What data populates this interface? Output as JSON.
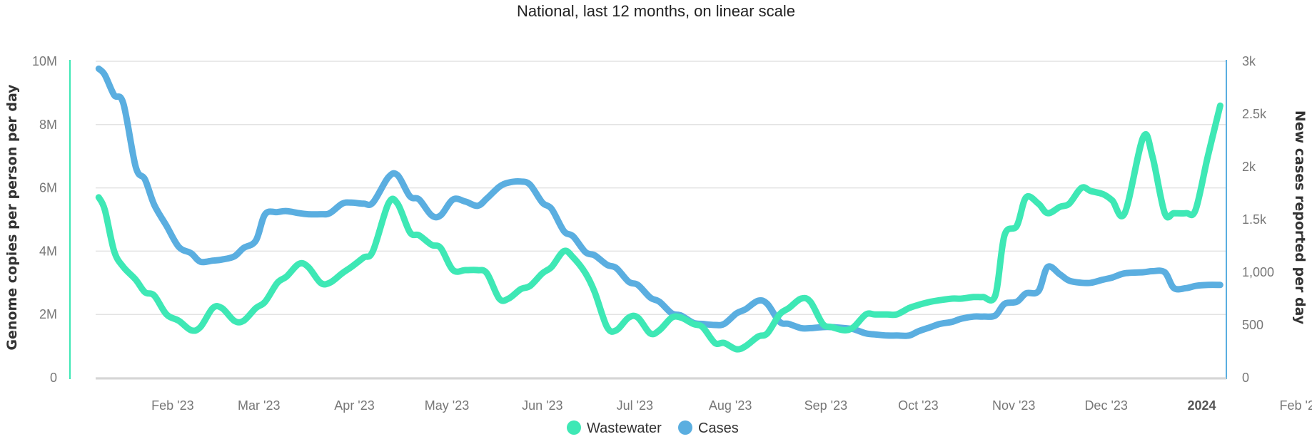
{
  "chart_data": {
    "type": "line",
    "title": "National, last 12 months, on linear scale",
    "y_left": {
      "label": "Genome copies per person per day",
      "ticks": [
        "0",
        "2M",
        "4M",
        "6M",
        "8M",
        "10M"
      ],
      "range": [
        0,
        10000000
      ],
      "color": "#3ee8b5"
    },
    "y_right": {
      "label": "New cases reported per day",
      "ticks": [
        "0",
        "500",
        "1,000",
        "1.5k",
        "2k",
        "2.5k",
        "3k"
      ],
      "range": [
        0,
        3000
      ],
      "color": "#5aaee0"
    },
    "x_ticks": [
      {
        "label": "Feb '23",
        "date": "2023-02-01"
      },
      {
        "label": "Mar '23",
        "date": "2023-03-01"
      },
      {
        "label": "Apr '23",
        "date": "2023-04-01"
      },
      {
        "label": "May '23",
        "date": "2023-05-01"
      },
      {
        "label": "Jun '23",
        "date": "2023-06-01"
      },
      {
        "label": "Jul '23",
        "date": "2023-07-01"
      },
      {
        "label": "Aug '23",
        "date": "2023-08-01"
      },
      {
        "label": "Sep '23",
        "date": "2023-09-01"
      },
      {
        "label": "Oct '23",
        "date": "2023-10-01"
      },
      {
        "label": "Nov '23",
        "date": "2023-11-01"
      },
      {
        "label": "Dec '23",
        "date": "2023-12-01"
      },
      {
        "label": "2024",
        "date": "2024-01-01",
        "bold": true
      },
      {
        "label": "Feb '2",
        "date": "2024-02-01"
      }
    ],
    "grid": true,
    "legend_position": "bottom",
    "series": [
      {
        "name": "Wastewater",
        "axis": "left",
        "color": "#3ee8b5",
        "points": [
          [
            "2023-01-08",
            5700000
          ],
          [
            "2023-01-10",
            5300000
          ],
          [
            "2023-01-13",
            4000000
          ],
          [
            "2023-01-16",
            3500000
          ],
          [
            "2023-01-20",
            3100000
          ],
          [
            "2023-01-23",
            2700000
          ],
          [
            "2023-01-26",
            2600000
          ],
          [
            "2023-01-30",
            2000000
          ],
          [
            "2023-02-03",
            1800000
          ],
          [
            "2023-02-07",
            1500000
          ],
          [
            "2023-02-10",
            1600000
          ],
          [
            "2023-02-14",
            2200000
          ],
          [
            "2023-02-17",
            2200000
          ],
          [
            "2023-02-21",
            1800000
          ],
          [
            "2023-02-24",
            1800000
          ],
          [
            "2023-02-28",
            2200000
          ],
          [
            "2023-03-03",
            2400000
          ],
          [
            "2023-03-07",
            3000000
          ],
          [
            "2023-03-10",
            3200000
          ],
          [
            "2023-03-14",
            3600000
          ],
          [
            "2023-03-17",
            3500000
          ],
          [
            "2023-03-21",
            3000000
          ],
          [
            "2023-03-24",
            3000000
          ],
          [
            "2023-03-28",
            3300000
          ],
          [
            "2023-03-31",
            3500000
          ],
          [
            "2023-04-04",
            3800000
          ],
          [
            "2023-04-07",
            4000000
          ],
          [
            "2023-04-12",
            5500000
          ],
          [
            "2023-04-15",
            5500000
          ],
          [
            "2023-04-19",
            4600000
          ],
          [
            "2023-04-22",
            4500000
          ],
          [
            "2023-04-26",
            4200000
          ],
          [
            "2023-04-29",
            4100000
          ],
          [
            "2023-05-03",
            3400000
          ],
          [
            "2023-05-07",
            3400000
          ],
          [
            "2023-05-11",
            3400000
          ],
          [
            "2023-05-14",
            3300000
          ],
          [
            "2023-05-18",
            2500000
          ],
          [
            "2023-05-21",
            2500000
          ],
          [
            "2023-05-25",
            2800000
          ],
          [
            "2023-05-28",
            2900000
          ],
          [
            "2023-06-01",
            3300000
          ],
          [
            "2023-06-04",
            3500000
          ],
          [
            "2023-06-08",
            4000000
          ],
          [
            "2023-06-11",
            3800000
          ],
          [
            "2023-06-15",
            3300000
          ],
          [
            "2023-06-18",
            2700000
          ],
          [
            "2023-06-22",
            1600000
          ],
          [
            "2023-06-25",
            1500000
          ],
          [
            "2023-06-29",
            1900000
          ],
          [
            "2023-07-02",
            1900000
          ],
          [
            "2023-07-06",
            1400000
          ],
          [
            "2023-07-09",
            1500000
          ],
          [
            "2023-07-13",
            1900000
          ],
          [
            "2023-07-16",
            1900000
          ],
          [
            "2023-07-20",
            1700000
          ],
          [
            "2023-07-23",
            1600000
          ],
          [
            "2023-07-27",
            1100000
          ],
          [
            "2023-07-30",
            1100000
          ],
          [
            "2023-08-03",
            900000
          ],
          [
            "2023-08-06",
            1000000
          ],
          [
            "2023-08-10",
            1300000
          ],
          [
            "2023-08-13",
            1400000
          ],
          [
            "2023-08-17",
            2000000
          ],
          [
            "2023-08-20",
            2200000
          ],
          [
            "2023-08-24",
            2500000
          ],
          [
            "2023-08-27",
            2400000
          ],
          [
            "2023-08-31",
            1700000
          ],
          [
            "2023-09-03",
            1600000
          ],
          [
            "2023-09-07",
            1500000
          ],
          [
            "2023-09-10",
            1600000
          ],
          [
            "2023-09-14",
            2000000
          ],
          [
            "2023-09-17",
            2000000
          ],
          [
            "2023-09-21",
            2000000
          ],
          [
            "2023-09-24",
            2000000
          ],
          [
            "2023-09-28",
            2200000
          ],
          [
            "2023-10-01",
            2300000
          ],
          [
            "2023-10-05",
            2400000
          ],
          [
            "2023-10-08",
            2450000
          ],
          [
            "2023-10-12",
            2500000
          ],
          [
            "2023-10-15",
            2500000
          ],
          [
            "2023-10-19",
            2550000
          ],
          [
            "2023-10-22",
            2550000
          ],
          [
            "2023-10-26",
            2600000
          ],
          [
            "2023-10-29",
            4500000
          ],
          [
            "2023-11-02",
            4800000
          ],
          [
            "2023-11-05",
            5700000
          ],
          [
            "2023-11-09",
            5500000
          ],
          [
            "2023-11-12",
            5200000
          ],
          [
            "2023-11-16",
            5400000
          ],
          [
            "2023-11-19",
            5500000
          ],
          [
            "2023-11-23",
            6000000
          ],
          [
            "2023-11-26",
            5900000
          ],
          [
            "2023-11-30",
            5800000
          ],
          [
            "2023-12-03",
            5600000
          ],
          [
            "2023-12-07",
            5200000
          ],
          [
            "2023-12-13",
            7600000
          ],
          [
            "2023-12-16",
            7000000
          ],
          [
            "2023-12-20",
            5200000
          ],
          [
            "2023-12-23",
            5200000
          ],
          [
            "2023-12-27",
            5200000
          ],
          [
            "2023-12-30",
            5300000
          ],
          [
            "2024-01-03",
            7000000
          ],
          [
            "2024-01-07",
            8600000
          ]
        ]
      },
      {
        "name": "Cases",
        "axis": "right",
        "color": "#5aaee0",
        "points": [
          [
            "2023-01-08",
            2930
          ],
          [
            "2023-01-10",
            2870
          ],
          [
            "2023-01-13",
            2680
          ],
          [
            "2023-01-16",
            2600
          ],
          [
            "2023-01-20",
            2000
          ],
          [
            "2023-01-23",
            1880
          ],
          [
            "2023-01-26",
            1640
          ],
          [
            "2023-01-30",
            1440
          ],
          [
            "2023-02-03",
            1240
          ],
          [
            "2023-02-07",
            1180
          ],
          [
            "2023-02-10",
            1100
          ],
          [
            "2023-02-14",
            1110
          ],
          [
            "2023-02-17",
            1120
          ],
          [
            "2023-02-21",
            1150
          ],
          [
            "2023-02-24",
            1230
          ],
          [
            "2023-02-28",
            1300
          ],
          [
            "2023-03-03",
            1550
          ],
          [
            "2023-03-07",
            1570
          ],
          [
            "2023-03-10",
            1580
          ],
          [
            "2023-03-14",
            1560
          ],
          [
            "2023-03-17",
            1550
          ],
          [
            "2023-03-21",
            1550
          ],
          [
            "2023-03-24",
            1560
          ],
          [
            "2023-03-28",
            1650
          ],
          [
            "2023-03-31",
            1660
          ],
          [
            "2023-04-04",
            1650
          ],
          [
            "2023-04-07",
            1660
          ],
          [
            "2023-04-12",
            1900
          ],
          [
            "2023-04-15",
            1920
          ],
          [
            "2023-04-19",
            1720
          ],
          [
            "2023-04-22",
            1690
          ],
          [
            "2023-04-26",
            1540
          ],
          [
            "2023-04-29",
            1540
          ],
          [
            "2023-05-03",
            1690
          ],
          [
            "2023-05-07",
            1670
          ],
          [
            "2023-05-11",
            1630
          ],
          [
            "2023-05-14",
            1700
          ],
          [
            "2023-05-18",
            1810
          ],
          [
            "2023-05-21",
            1850
          ],
          [
            "2023-05-25",
            1860
          ],
          [
            "2023-05-28",
            1830
          ],
          [
            "2023-06-01",
            1660
          ],
          [
            "2023-06-04",
            1600
          ],
          [
            "2023-06-08",
            1390
          ],
          [
            "2023-06-11",
            1340
          ],
          [
            "2023-06-15",
            1190
          ],
          [
            "2023-06-18",
            1160
          ],
          [
            "2023-06-22",
            1070
          ],
          [
            "2023-06-25",
            1040
          ],
          [
            "2023-06-29",
            910
          ],
          [
            "2023-07-02",
            880
          ],
          [
            "2023-07-06",
            760
          ],
          [
            "2023-07-09",
            720
          ],
          [
            "2023-07-13",
            610
          ],
          [
            "2023-07-16",
            590
          ],
          [
            "2023-07-20",
            520
          ],
          [
            "2023-07-23",
            510
          ],
          [
            "2023-07-27",
            500
          ],
          [
            "2023-07-30",
            510
          ],
          [
            "2023-08-03",
            610
          ],
          [
            "2023-08-06",
            650
          ],
          [
            "2023-08-10",
            730
          ],
          [
            "2023-08-13",
            700
          ],
          [
            "2023-08-17",
            530
          ],
          [
            "2023-08-20",
            510
          ],
          [
            "2023-08-24",
            470
          ],
          [
            "2023-08-27",
            470
          ],
          [
            "2023-08-31",
            480
          ],
          [
            "2023-09-03",
            480
          ],
          [
            "2023-09-07",
            470
          ],
          [
            "2023-09-10",
            460
          ],
          [
            "2023-09-14",
            420
          ],
          [
            "2023-09-17",
            410
          ],
          [
            "2023-09-21",
            400
          ],
          [
            "2023-09-24",
            400
          ],
          [
            "2023-09-28",
            400
          ],
          [
            "2023-10-01",
            440
          ],
          [
            "2023-10-05",
            480
          ],
          [
            "2023-10-08",
            510
          ],
          [
            "2023-10-12",
            530
          ],
          [
            "2023-10-15",
            560
          ],
          [
            "2023-10-19",
            580
          ],
          [
            "2023-10-22",
            580
          ],
          [
            "2023-10-26",
            590
          ],
          [
            "2023-10-29",
            700
          ],
          [
            "2023-11-02",
            720
          ],
          [
            "2023-11-05",
            800
          ],
          [
            "2023-11-09",
            820
          ],
          [
            "2023-11-12",
            1050
          ],
          [
            "2023-11-16",
            980
          ],
          [
            "2023-11-19",
            920
          ],
          [
            "2023-11-23",
            900
          ],
          [
            "2023-11-26",
            900
          ],
          [
            "2023-11-30",
            930
          ],
          [
            "2023-12-03",
            950
          ],
          [
            "2023-12-07",
            990
          ],
          [
            "2023-12-13",
            1000
          ],
          [
            "2023-12-16",
            1010
          ],
          [
            "2023-12-20",
            1000
          ],
          [
            "2023-12-23",
            850
          ],
          [
            "2023-12-27",
            850
          ],
          [
            "2023-12-30",
            870
          ],
          [
            "2024-01-03",
            880
          ],
          [
            "2024-01-07",
            880
          ]
        ]
      }
    ]
  }
}
